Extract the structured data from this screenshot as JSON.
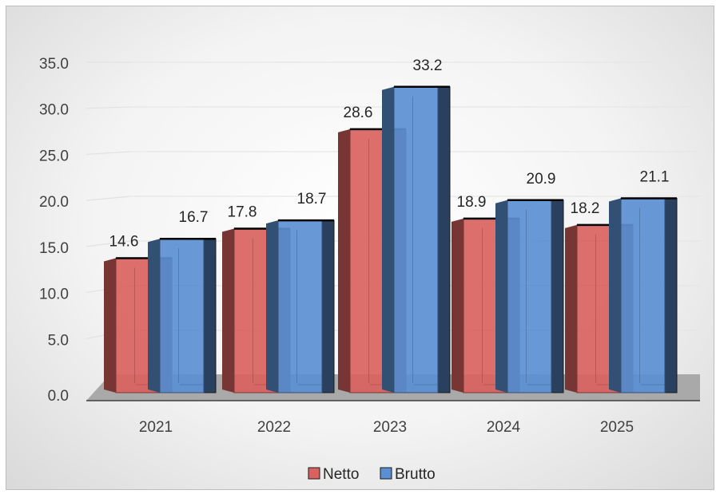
{
  "chart_data": {
    "type": "bar",
    "categories": [
      "2021",
      "2022",
      "2023",
      "2024",
      "2025"
    ],
    "series": [
      {
        "name": "Netto",
        "values": [
          14.6,
          17.8,
          28.6,
          18.9,
          18.2
        ]
      },
      {
        "name": "Brutto",
        "values": [
          16.7,
          18.7,
          33.2,
          20.9,
          21.1
        ]
      }
    ],
    "data_labels": [
      [
        "14.6",
        "17.8",
        "28.6",
        "18.9",
        "18.2"
      ],
      [
        "16.7",
        "18.7",
        "33.2",
        "20.9",
        "21.1"
      ]
    ],
    "y_ticks": [
      "0.0",
      "5.0",
      "10.0",
      "15.0",
      "20.0",
      "25.0",
      "30.0",
      "35.0"
    ],
    "ylim": [
      0,
      35
    ],
    "grid": true,
    "legend_position": "bottom",
    "three_d": true,
    "colors": {
      "Netto": "#d9625f",
      "Brutto": "#5b8fd3"
    }
  }
}
